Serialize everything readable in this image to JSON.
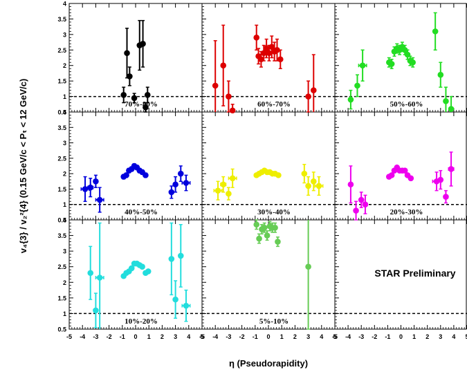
{
  "chart_data": {
    "type": "scatter",
    "layout": "3x3 grid of panels with shared axes",
    "xlabel": "η (Pseudorapidity)",
    "ylabel": "v₄{3} / v₂²{4}   (0.15 GeV/c < Pₜ < 12 GeV/c)",
    "xlim": [
      -5,
      5
    ],
    "ylim": [
      0.5,
      4
    ],
    "x_ticks": [
      "-5",
      "-4",
      "-3",
      "-2",
      "-1",
      "0",
      "1",
      "2",
      "3",
      "4",
      "5"
    ],
    "y_ticks": [
      "0.5",
      "1",
      "1.5",
      "2",
      "2.5",
      "3",
      "3.5",
      "4"
    ],
    "reference_line_y": 1,
    "annotation": "STAR Preliminary",
    "panels": [
      {
        "label": "70%-80%",
        "color": "#000000",
        "points": [
          {
            "x": -0.9,
            "y": 1.05,
            "yerr": 0.25,
            "xerr": 0
          },
          {
            "x": -0.65,
            "y": 2.4,
            "yerr": 0.8,
            "xerr": 0
          },
          {
            "x": -0.45,
            "y": 1.65,
            "yerr": 0.3,
            "xerr": 0
          },
          {
            "x": -0.1,
            "y": 0.95,
            "yerr": 0.15,
            "xerr": 0
          },
          {
            "x": 0.3,
            "y": 2.65,
            "yerr": 0.8,
            "xerr": 0
          },
          {
            "x": 0.55,
            "y": 2.7,
            "yerr": 0.75,
            "xerr": 0
          },
          {
            "x": 0.75,
            "y": 0.65,
            "yerr": 0.15,
            "xerr": 0
          },
          {
            "x": 0.9,
            "y": 1.05,
            "yerr": 0.25,
            "xerr": 0
          }
        ]
      },
      {
        "label": "60%-70%",
        "color": "#dd0000",
        "points": [
          {
            "x": -4.0,
            "y": 1.35,
            "yerr": 1.45,
            "xerr": 0
          },
          {
            "x": -3.4,
            "y": 2.0,
            "yerr": 1.3,
            "xerr": 0
          },
          {
            "x": -3.0,
            "y": 1.0,
            "yerr": 0.5,
            "xerr": 0
          },
          {
            "x": -2.7,
            "y": 0.55,
            "yerr": 0.2,
            "xerr": 0
          },
          {
            "x": -0.9,
            "y": 2.9,
            "yerr": 0.4,
            "xerr": 0
          },
          {
            "x": -0.75,
            "y": 2.3,
            "yerr": 0.25,
            "xerr": 0.1
          },
          {
            "x": -0.55,
            "y": 2.2,
            "yerr": 0.25,
            "xerr": 0.1
          },
          {
            "x": -0.35,
            "y": 2.4,
            "yerr": 0.25,
            "xerr": 0.1
          },
          {
            "x": -0.15,
            "y": 2.55,
            "yerr": 0.3,
            "xerr": 0.1
          },
          {
            "x": 0.05,
            "y": 2.4,
            "yerr": 0.25,
            "xerr": 0.1
          },
          {
            "x": 0.25,
            "y": 2.6,
            "yerr": 0.35,
            "xerr": 0.1
          },
          {
            "x": 0.45,
            "y": 2.45,
            "yerr": 0.3,
            "xerr": 0.1
          },
          {
            "x": 0.65,
            "y": 2.5,
            "yerr": 0.35,
            "xerr": 0.1
          },
          {
            "x": 0.9,
            "y": 2.2,
            "yerr": 0.3,
            "xerr": 0.1
          },
          {
            "x": 3.0,
            "y": 1.0,
            "yerr": 0.5,
            "xerr": 0
          },
          {
            "x": 3.4,
            "y": 1.2,
            "yerr": 1.15,
            "xerr": 0
          }
        ]
      },
      {
        "label": "50%-60%",
        "color": "#22dd22",
        "points": [
          {
            "x": -3.8,
            "y": 0.9,
            "yerr": 0.3,
            "xerr": 0
          },
          {
            "x": -3.3,
            "y": 1.35,
            "yerr": 0.35,
            "xerr": 0
          },
          {
            "x": -2.9,
            "y": 2.0,
            "yerr": 0.5,
            "xerr": 0.3
          },
          {
            "x": -0.9,
            "y": 2.1,
            "yerr": 0.15,
            "xerr": 0.1
          },
          {
            "x": -0.7,
            "y": 2.05,
            "yerr": 0.15,
            "xerr": 0.1
          },
          {
            "x": -0.5,
            "y": 2.45,
            "yerr": 0.15,
            "xerr": 0.1
          },
          {
            "x": -0.3,
            "y": 2.55,
            "yerr": 0.15,
            "xerr": 0.1
          },
          {
            "x": -0.1,
            "y": 2.5,
            "yerr": 0.15,
            "xerr": 0.1
          },
          {
            "x": 0.1,
            "y": 2.6,
            "yerr": 0.15,
            "xerr": 0.1
          },
          {
            "x": 0.3,
            "y": 2.5,
            "yerr": 0.15,
            "xerr": 0.1
          },
          {
            "x": 0.5,
            "y": 2.35,
            "yerr": 0.15,
            "xerr": 0.1
          },
          {
            "x": 0.7,
            "y": 2.15,
            "yerr": 0.15,
            "xerr": 0.1
          },
          {
            "x": 0.9,
            "y": 2.1,
            "yerr": 0.15,
            "xerr": 0.1
          },
          {
            "x": 2.6,
            "y": 3.1,
            "yerr": 0.6,
            "xerr": 0
          },
          {
            "x": 3.0,
            "y": 1.7,
            "yerr": 0.4,
            "xerr": 0
          },
          {
            "x": 3.4,
            "y": 0.85,
            "yerr": 0.45,
            "xerr": 0
          },
          {
            "x": 3.8,
            "y": 0.6,
            "yerr": 0.4,
            "xerr": 0
          }
        ]
      },
      {
        "label": "40%-50%",
        "color": "#0000dd",
        "points": [
          {
            "x": -3.8,
            "y": 1.5,
            "yerr": 0.4,
            "xerr": 0.3
          },
          {
            "x": -3.4,
            "y": 1.55,
            "yerr": 0.3,
            "xerr": 0.2
          },
          {
            "x": -3.0,
            "y": 1.75,
            "yerr": 0.2,
            "xerr": 0
          },
          {
            "x": -2.7,
            "y": 1.15,
            "yerr": 0.4,
            "xerr": 0.3
          },
          {
            "x": -0.9,
            "y": 1.9,
            "yerr": 0.07,
            "xerr": 0.1
          },
          {
            "x": -0.7,
            "y": 1.95,
            "yerr": 0.07,
            "xerr": 0.1
          },
          {
            "x": -0.5,
            "y": 2.1,
            "yerr": 0.07,
            "xerr": 0.1
          },
          {
            "x": -0.3,
            "y": 2.15,
            "yerr": 0.07,
            "xerr": 0.1
          },
          {
            "x": -0.1,
            "y": 2.25,
            "yerr": 0.07,
            "xerr": 0.1
          },
          {
            "x": 0.1,
            "y": 2.2,
            "yerr": 0.07,
            "xerr": 0.1
          },
          {
            "x": 0.3,
            "y": 2.1,
            "yerr": 0.07,
            "xerr": 0.1
          },
          {
            "x": 0.5,
            "y": 2.05,
            "yerr": 0.07,
            "xerr": 0.1
          },
          {
            "x": 0.75,
            "y": 1.95,
            "yerr": 0.07,
            "xerr": 0.1
          },
          {
            "x": 2.7,
            "y": 1.4,
            "yerr": 0.2,
            "xerr": 0
          },
          {
            "x": 3.0,
            "y": 1.65,
            "yerr": 0.25,
            "xerr": 0
          },
          {
            "x": 3.4,
            "y": 2.0,
            "yerr": 0.25,
            "xerr": 0
          },
          {
            "x": 3.8,
            "y": 1.7,
            "yerr": 0.25,
            "xerr": 0.3
          }
        ]
      },
      {
        "label": "30%-40%",
        "color": "#eeee00",
        "points": [
          {
            "x": -3.8,
            "y": 1.45,
            "yerr": 0.3,
            "xerr": 0.3
          },
          {
            "x": -3.4,
            "y": 1.65,
            "yerr": 0.25,
            "xerr": 0.2
          },
          {
            "x": -3.0,
            "y": 1.35,
            "yerr": 0.2,
            "xerr": 0
          },
          {
            "x": -2.7,
            "y": 1.85,
            "yerr": 0.3,
            "xerr": 0.3
          },
          {
            "x": -0.9,
            "y": 1.95,
            "yerr": 0.05,
            "xerr": 0.1
          },
          {
            "x": -0.7,
            "y": 2.0,
            "yerr": 0.05,
            "xerr": 0.1
          },
          {
            "x": -0.5,
            "y": 2.05,
            "yerr": 0.05,
            "xerr": 0.1
          },
          {
            "x": -0.3,
            "y": 2.1,
            "yerr": 0.05,
            "xerr": 0.1
          },
          {
            "x": -0.1,
            "y": 2.05,
            "yerr": 0.05,
            "xerr": 0.1
          },
          {
            "x": 0.1,
            "y": 2.05,
            "yerr": 0.05,
            "xerr": 0.1
          },
          {
            "x": 0.3,
            "y": 2.0,
            "yerr": 0.05,
            "xerr": 0.1
          },
          {
            "x": 0.5,
            "y": 2.0,
            "yerr": 0.05,
            "xerr": 0.1
          },
          {
            "x": 0.75,
            "y": 1.95,
            "yerr": 0.05,
            "xerr": 0.1
          },
          {
            "x": 2.7,
            "y": 2.0,
            "yerr": 0.3,
            "xerr": 0
          },
          {
            "x": 3.0,
            "y": 1.6,
            "yerr": 0.3,
            "xerr": 0
          },
          {
            "x": 3.4,
            "y": 1.75,
            "yerr": 0.3,
            "xerr": 0
          },
          {
            "x": 3.8,
            "y": 1.6,
            "yerr": 0.3,
            "xerr": 0.3
          }
        ]
      },
      {
        "label": "20%-30%",
        "color": "#ee00ee",
        "points": [
          {
            "x": -3.8,
            "y": 1.65,
            "yerr": 0.6,
            "xerr": 0
          },
          {
            "x": -3.4,
            "y": 0.8,
            "yerr": 0.3,
            "xerr": 0
          },
          {
            "x": -3.0,
            "y": 1.15,
            "yerr": 0.25,
            "xerr": 0
          },
          {
            "x": -2.7,
            "y": 1.0,
            "yerr": 0.3,
            "xerr": 0
          },
          {
            "x": -0.9,
            "y": 1.9,
            "yerr": 0.05,
            "xerr": 0.1
          },
          {
            "x": -0.7,
            "y": 1.95,
            "yerr": 0.05,
            "xerr": 0.1
          },
          {
            "x": -0.5,
            "y": 2.1,
            "yerr": 0.05,
            "xerr": 0.1
          },
          {
            "x": -0.3,
            "y": 2.2,
            "yerr": 0.05,
            "xerr": 0.1
          },
          {
            "x": -0.1,
            "y": 2.1,
            "yerr": 0.05,
            "xerr": 0.1
          },
          {
            "x": 0.1,
            "y": 2.1,
            "yerr": 0.05,
            "xerr": 0.1
          },
          {
            "x": 0.3,
            "y": 2.1,
            "yerr": 0.05,
            "xerr": 0.1
          },
          {
            "x": 0.5,
            "y": 1.95,
            "yerr": 0.05,
            "xerr": 0.1
          },
          {
            "x": 0.75,
            "y": 1.85,
            "yerr": 0.05,
            "xerr": 0.1
          },
          {
            "x": 2.7,
            "y": 1.75,
            "yerr": 0.3,
            "xerr": 0.3
          },
          {
            "x": 3.0,
            "y": 1.8,
            "yerr": 0.3,
            "xerr": 0
          },
          {
            "x": 3.4,
            "y": 1.25,
            "yerr": 0.2,
            "xerr": 0
          },
          {
            "x": 3.8,
            "y": 2.15,
            "yerr": 0.55,
            "xerr": 0.2
          }
        ]
      },
      {
        "label": "10%-20%",
        "color": "#22dddd",
        "points": [
          {
            "x": -3.4,
            "y": 2.3,
            "yerr": 0.85,
            "xerr": 0
          },
          {
            "x": -3.0,
            "y": 1.1,
            "yerr": 0.55,
            "xerr": 0
          },
          {
            "x": -2.7,
            "y": 2.15,
            "yerr": 1.75,
            "xerr": 0.3
          },
          {
            "x": -0.9,
            "y": 2.2,
            "yerr": 0.05,
            "xerr": 0.1
          },
          {
            "x": -0.7,
            "y": 2.3,
            "yerr": 0.05,
            "xerr": 0.1
          },
          {
            "x": -0.5,
            "y": 2.35,
            "yerr": 0.05,
            "xerr": 0.1
          },
          {
            "x": -0.3,
            "y": 2.45,
            "yerr": 0.05,
            "xerr": 0.1
          },
          {
            "x": -0.1,
            "y": 2.6,
            "yerr": 0.05,
            "xerr": 0.1
          },
          {
            "x": 0.1,
            "y": 2.6,
            "yerr": 0.05,
            "xerr": 0.1
          },
          {
            "x": 0.3,
            "y": 2.55,
            "yerr": 0.05,
            "xerr": 0.1
          },
          {
            "x": 0.5,
            "y": 2.5,
            "yerr": 0.05,
            "xerr": 0.1
          },
          {
            "x": 0.75,
            "y": 2.3,
            "yerr": 0.05,
            "xerr": 0.1
          },
          {
            "x": 0.95,
            "y": 2.35,
            "yerr": 0.05,
            "xerr": 0.1
          },
          {
            "x": 2.7,
            "y": 2.75,
            "yerr": 1.15,
            "xerr": 0
          },
          {
            "x": 3.0,
            "y": 1.45,
            "yerr": 0.6,
            "xerr": 0
          },
          {
            "x": 3.4,
            "y": 2.85,
            "yerr": 1.0,
            "xerr": 0
          },
          {
            "x": 3.8,
            "y": 1.25,
            "yerr": 0.5,
            "xerr": 0.3
          }
        ]
      },
      {
        "label": "5%-10%",
        "color": "#66cc55",
        "points": [
          {
            "x": -0.9,
            "y": 3.85,
            "yerr": 0.15,
            "xerr": 0.1
          },
          {
            "x": -0.7,
            "y": 3.4,
            "yerr": 0.15,
            "xerr": 0.1
          },
          {
            "x": -0.5,
            "y": 3.7,
            "yerr": 0.15,
            "xerr": 0.1
          },
          {
            "x": -0.3,
            "y": 3.75,
            "yerr": 0.15,
            "xerr": 0.1
          },
          {
            "x": -0.1,
            "y": 3.5,
            "yerr": 0.15,
            "xerr": 0.1
          },
          {
            "x": 0.1,
            "y": 3.8,
            "yerr": 0.15,
            "xerr": 0.1
          },
          {
            "x": 0.3,
            "y": 3.75,
            "yerr": 0.15,
            "xerr": 0.1
          },
          {
            "x": 0.5,
            "y": 3.75,
            "yerr": 0.15,
            "xerr": 0.1
          },
          {
            "x": 0.7,
            "y": 3.3,
            "yerr": 0.15,
            "xerr": 0.1
          },
          {
            "x": 3.0,
            "y": 2.5,
            "yerr": 2.0,
            "xerr": 0
          }
        ]
      },
      {
        "label": "",
        "color": "#000000",
        "points": []
      }
    ]
  }
}
